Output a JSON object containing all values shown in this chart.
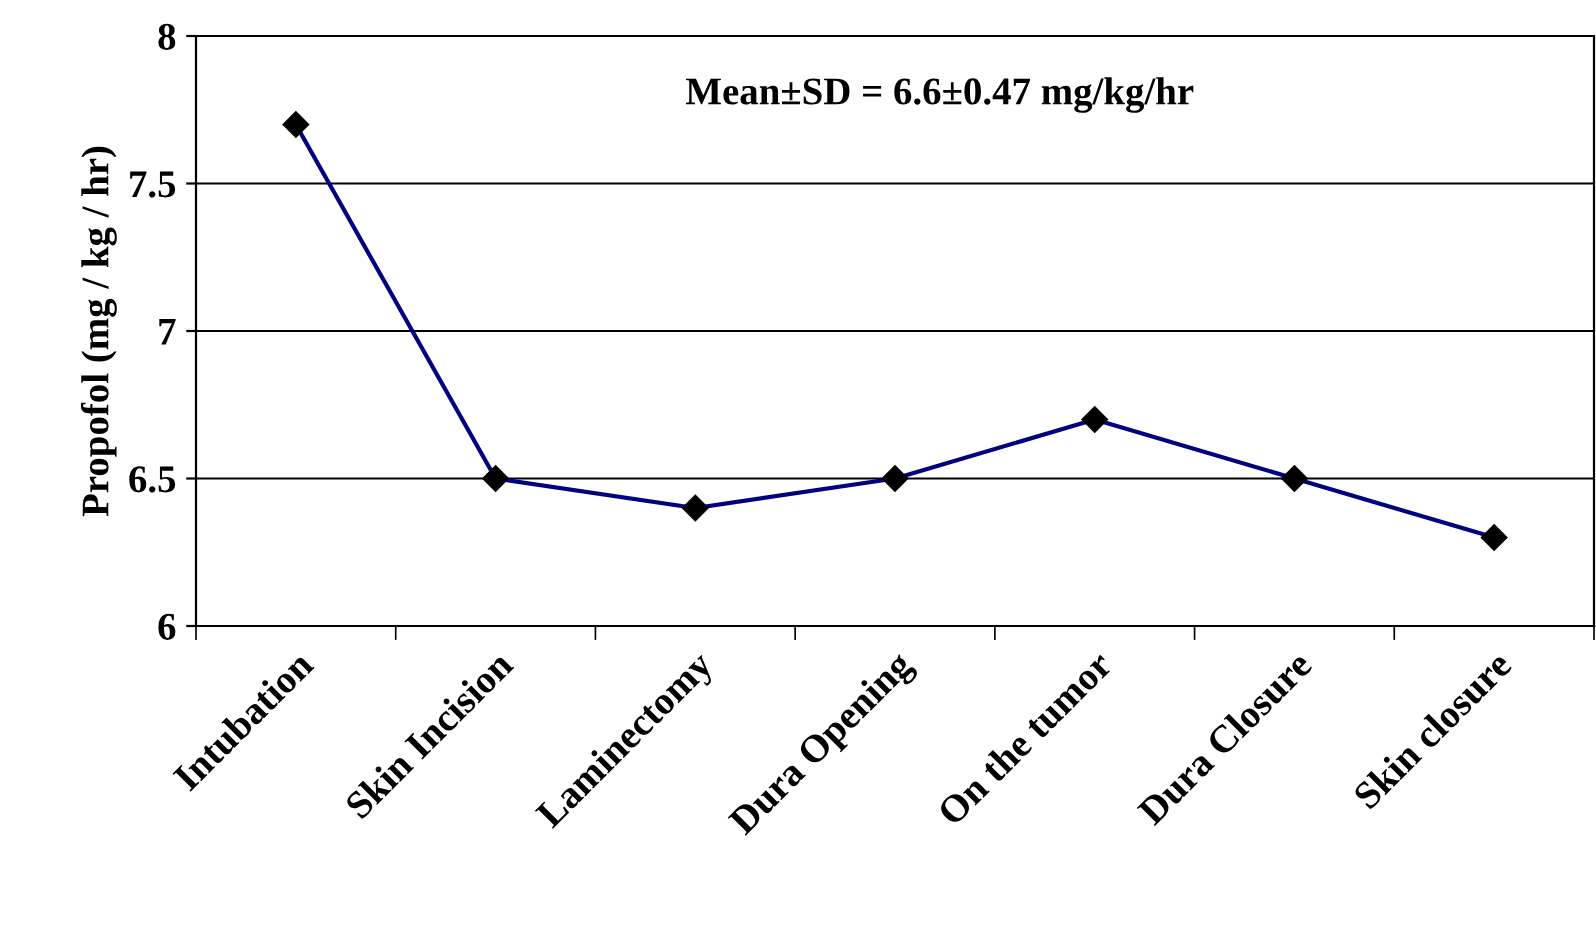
{
  "chart_data": {
    "type": "line",
    "ylabel": "Propofol (mg / kg / hr)",
    "categories": [
      "Intubation",
      "Skin Incision",
      "Laminectomy",
      "Dura Opening",
      "On the tumor",
      "Dura Closure",
      "Skin closure"
    ],
    "series": [
      {
        "color": "#000080",
        "values": [
          7.7,
          6.5,
          6.4,
          6.5,
          6.7,
          6.5,
          6.3
        ]
      }
    ],
    "ylim": [
      6,
      8
    ],
    "yticks": [
      6,
      6.5,
      7,
      7.5,
      8
    ],
    "grid": "y",
    "marker": "diamond",
    "line_style": "solid",
    "annotations": [
      "Mean±SD = 6.6±0.47 mg/kg/hr"
    ]
  }
}
